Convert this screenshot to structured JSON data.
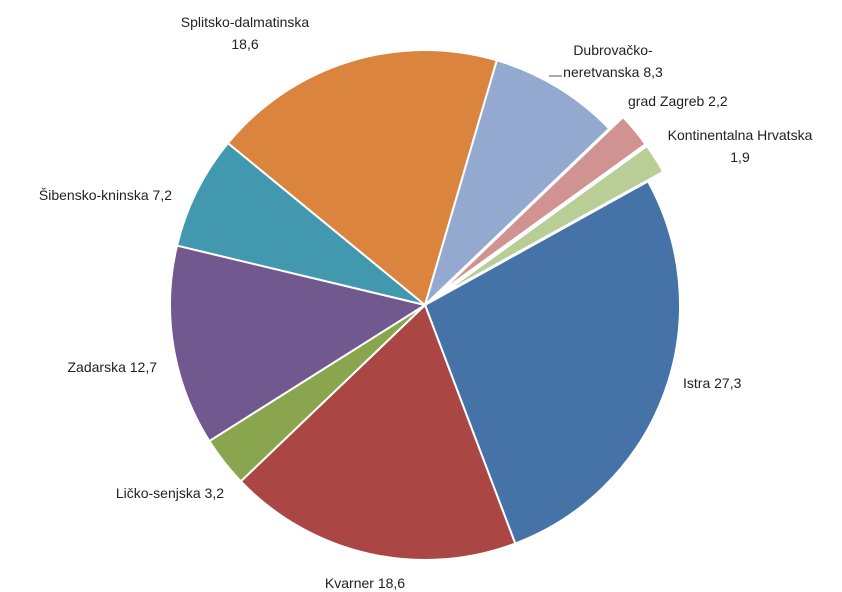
{
  "chart_data": {
    "type": "pie",
    "categories": [
      "Istra",
      "Kvarner",
      "Ličko-senjska",
      "Zadarska",
      "Šibensko-kninska",
      "Splitsko-dalmatinska",
      "Dubrovačko-neretvanska",
      "grad Zagreb",
      "Kontinentalna Hrvatska"
    ],
    "values": [
      27.3,
      18.6,
      3.2,
      12.7,
      7.2,
      18.6,
      8.3,
      2.2,
      1.9
    ],
    "value_labels": [
      "27,3",
      "18,6",
      "3,2",
      "12,7",
      "7,2",
      "18,6",
      "8,3",
      "2,2",
      "1,9"
    ],
    "colors": [
      "#4572a7",
      "#aa4643",
      "#89a54e",
      "#71588f",
      "#4198af",
      "#db843d",
      "#93a9cf",
      "#d19392",
      "#b9cd96"
    ],
    "explode": [
      false,
      false,
      false,
      false,
      false,
      false,
      false,
      true,
      true
    ]
  }
}
